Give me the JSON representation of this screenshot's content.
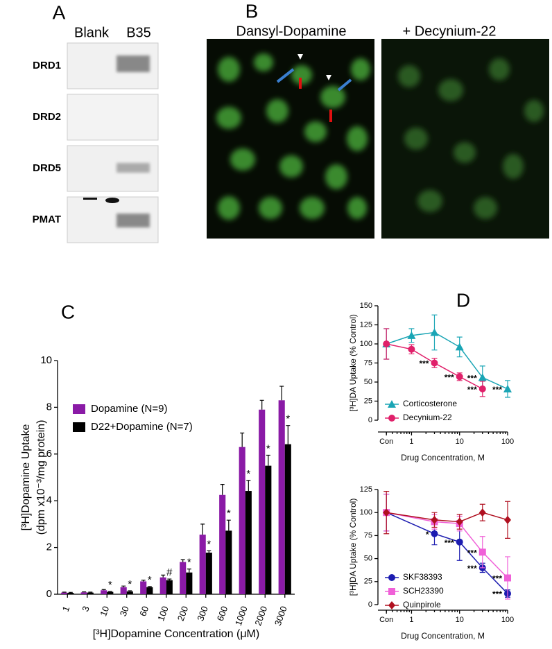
{
  "panel_labels": [
    "A",
    "B",
    "C",
    "D"
  ],
  "gel": {
    "columns": [
      "Blank",
      "B35"
    ],
    "rows": [
      "DRD1",
      "DRD2",
      "DRD5",
      "PMAT"
    ]
  },
  "micrograph": {
    "titles": [
      "Dansyl-Dopamine",
      "+ Decynium-22"
    ]
  },
  "chart_data": [
    {
      "type": "bar",
      "ylabel": [
        "[³H]Dopamine Uptake",
        "(dpm x10⁻³/mg protein)"
      ],
      "xlabel": "[³H]Dopamine Concentration (μM)",
      "categories": [
        "1",
        "3",
        "10",
        "30",
        "60",
        "100",
        "200",
        "300",
        "600",
        "1000",
        "2000",
        "3000"
      ],
      "series": [
        {
          "name": "Dopamine (N=9)",
          "color": "#8a1aa6",
          "values": [
            0.07,
            0.08,
            0.17,
            0.3,
            0.55,
            0.72,
            1.38,
            2.55,
            4.25,
            6.3,
            7.9,
            8.3
          ],
          "errors": [
            0.02,
            0.02,
            0.03,
            0.05,
            0.05,
            0.1,
            0.1,
            0.45,
            0.45,
            0.6,
            0.4,
            0.6
          ]
        },
        {
          "name": "D22+Dopamine (N=7)",
          "color": "#000000",
          "values": [
            0.06,
            0.07,
            0.1,
            0.12,
            0.3,
            0.6,
            0.93,
            1.78,
            2.72,
            4.42,
            5.5,
            6.42
          ],
          "errors": [
            0.02,
            0.02,
            0.02,
            0.03,
            0.03,
            0.05,
            0.15,
            0.08,
            0.45,
            0.45,
            0.45,
            0.8
          ],
          "markers": [
            null,
            null,
            "*",
            "*",
            "*",
            "#",
            "*",
            "*",
            "*",
            "*",
            "*",
            "*"
          ]
        }
      ],
      "ylim": [
        0,
        10
      ],
      "yticks": [
        0,
        2,
        4,
        6,
        8,
        10
      ],
      "legend": "upper left"
    },
    {
      "type": "line",
      "xscale": "log",
      "ylabel": "[³H]DA Uptake (% Control)",
      "xlabel": "Drug Concentration,   M",
      "x": [
        0.3,
        1,
        3,
        10,
        30,
        100
      ],
      "xlim": [
        0.2,
        100
      ],
      "xticks": [
        {
          "value": 0.3,
          "label": "Con"
        },
        1,
        10,
        100
      ],
      "ylim": [
        0,
        150
      ],
      "yticks": [
        0,
        25,
        50,
        75,
        100,
        125,
        150
      ],
      "series": [
        {
          "name": "Corticosterone",
          "color": "#1aa5b5",
          "marker": "triangle",
          "values": [
            100,
            111,
            115,
            96,
            56,
            41
          ],
          "errors": [
            20,
            9,
            23,
            13,
            15,
            11
          ],
          "labels": [
            null,
            null,
            null,
            null,
            "***",
            "***"
          ]
        },
        {
          "name": "Decynium-22",
          "color": "#e0206a",
          "marker": "circle",
          "values": [
            100,
            93,
            75,
            57,
            41,
            null
          ],
          "errors": [
            20,
            6,
            6,
            5,
            10,
            null
          ],
          "labels": [
            null,
            null,
            "***",
            "***",
            "***",
            null
          ]
        }
      ],
      "legend": "lower left"
    },
    {
      "type": "line",
      "xscale": "log",
      "ylabel": "[³H]DA Uptake (% Control)",
      "xlabel": "Drug Concentration,   M",
      "x": [
        0.3,
        3,
        10,
        30,
        100
      ],
      "xlim": [
        0.2,
        100
      ],
      "xticks": [
        {
          "value": 0.3,
          "label": "Con"
        },
        1,
        10,
        100
      ],
      "ylim": [
        0,
        125
      ],
      "yticks": [
        0,
        25,
        50,
        75,
        100,
        125
      ],
      "series": [
        {
          "name": "SKF38393",
          "color": "#1c1cb0",
          "marker": "circle",
          "values": [
            100,
            77,
            68,
            40,
            12
          ],
          "errors": [
            20,
            12,
            20,
            5,
            4
          ],
          "labels": [
            null,
            "*",
            "***",
            "***",
            "***"
          ]
        },
        {
          "name": "SCH23390",
          "color": "#f060d8",
          "marker": "square",
          "values": [
            100,
            90,
            88,
            57,
            29
          ],
          "errors": [
            20,
            8,
            8,
            17,
            23
          ],
          "labels": [
            null,
            null,
            null,
            "***",
            "***"
          ]
        },
        {
          "name": "Quinpirole",
          "color": "#b01020",
          "marker": "diamond",
          "values": [
            100,
            92,
            90,
            100,
            92
          ],
          "errors": [
            23,
            8,
            8,
            9,
            20
          ],
          "labels": [
            null,
            null,
            null,
            null,
            null
          ]
        }
      ],
      "legend": "lower left"
    }
  ]
}
